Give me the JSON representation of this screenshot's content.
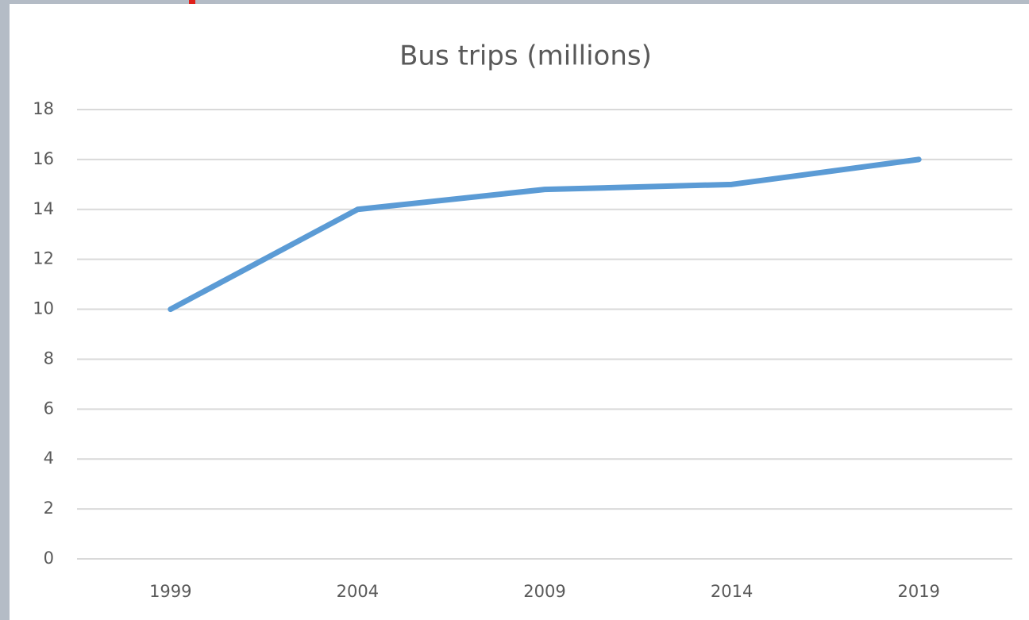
{
  "chart_data": {
    "type": "line",
    "title": "Bus trips (millions)",
    "categories": [
      "1999",
      "2004",
      "2009",
      "2014",
      "2019"
    ],
    "values": [
      10,
      14,
      14.8,
      15,
      16
    ],
    "color": "#5b9bd5",
    "ylim": [
      0,
      18
    ],
    "yticks": [
      0,
      2,
      4,
      6,
      8,
      10,
      12,
      14,
      16,
      18
    ],
    "grid": true
  }
}
